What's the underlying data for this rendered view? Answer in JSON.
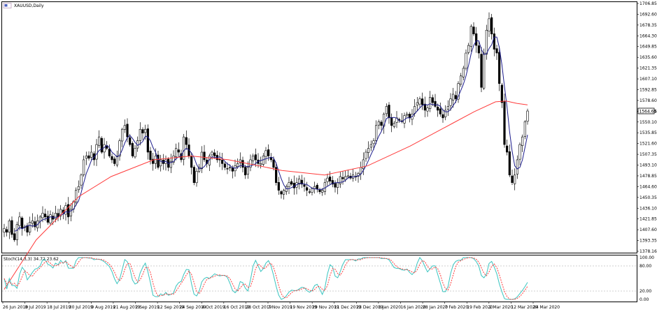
{
  "window": {
    "title": "XAUUSD,Daily"
  },
  "indicator": {
    "label": "Stoch(14,3,3) 34.72 23.62"
  },
  "colors": {
    "background": "#ffffff",
    "grid_border": "#000000",
    "ma_short": "#1c1c8c",
    "ma_long": "#ff3b3b",
    "stoch_main": "#39c5c0",
    "stoch_signal": "#ff3b3b",
    "level_line": "#c0c0c0",
    "price_label_bg": "#ffffff"
  },
  "chart_data": {
    "type": "candlestick",
    "symbol": "XAUUSD",
    "timeframe": "Daily",
    "price_axis": {
      "min": 1378.16,
      "max": 1706.85,
      "ticks": [
        "1706.85",
        "1692.60",
        "1678.35",
        "1664.30",
        "1649.85",
        "1635.60",
        "1621.35",
        "1607.10",
        "1592.85",
        "1578.60",
        "1564.35",
        "1550.10",
        "1535.85",
        "1521.60",
        "1507.35",
        "1493.10",
        "1478.85",
        "1464.60",
        "1450.35",
        "1436.10",
        "1421.85",
        "1407.60",
        "1393.35",
        "1378.16"
      ],
      "current_price": "1564.64"
    },
    "date_axis": {
      "ticks": [
        "26 Jun 2019",
        "8 Jul 2019",
        "18 Jul 2019",
        "30 Jul 2019",
        "9 Aug 2019",
        "21 Aug 2019",
        "2 Sep 2019",
        "12 Sep 2019",
        "24 Sep 2019",
        "4 Oct 2019",
        "16 Oct 2019",
        "28 Oct 2019",
        "7 Nov 2019",
        "19 Nov 2019",
        "29 Nov 2019",
        "11 Dec 2019",
        "23 Dec 2019",
        "6 Jan 2020",
        "16 Jan 2020",
        "28 Jan 2020",
        "7 Feb 2020",
        "19 Feb 2020",
        "2 Mar 2020",
        "12 Mar 2020",
        "24 Mar 2020"
      ]
    },
    "closes": [
      1410,
      1405,
      1420,
      1402,
      1395,
      1415,
      1425,
      1410,
      1412,
      1405,
      1418,
      1420,
      1412,
      1420,
      1425,
      1430,
      1425,
      1418,
      1428,
      1422,
      1430,
      1425,
      1435,
      1430,
      1440,
      1425,
      1435,
      1445,
      1460,
      1465,
      1480,
      1500,
      1505,
      1502,
      1510,
      1500,
      1520,
      1530,
      1510,
      1520,
      1515,
      1505,
      1500,
      1495,
      1505,
      1525,
      1540,
      1545,
      1530,
      1520,
      1505,
      1515,
      1525,
      1540,
      1535,
      1540,
      1510,
      1500,
      1495,
      1505,
      1490,
      1500,
      1495,
      1500,
      1490,
      1498,
      1505,
      1515,
      1510,
      1500,
      1530,
      1520,
      1505,
      1490,
      1470,
      1485,
      1490,
      1510,
      1500,
      1495,
      1505,
      1510,
      1505,
      1500,
      1500,
      1495,
      1490,
      1488,
      1490,
      1485,
      1492,
      1495,
      1500,
      1490,
      1480,
      1490,
      1500,
      1505,
      1500,
      1495,
      1495,
      1505,
      1512,
      1505,
      1500,
      1490,
      1470,
      1460,
      1455,
      1460,
      1465,
      1470,
      1468,
      1463,
      1470,
      1475,
      1468,
      1465,
      1460,
      1458,
      1462,
      1465,
      1462,
      1458,
      1460,
      1470,
      1476,
      1472,
      1468,
      1464,
      1470,
      1478,
      1475,
      1478,
      1479,
      1476,
      1480,
      1478,
      1482,
      1490,
      1500,
      1510,
      1515,
      1520,
      1525,
      1545,
      1550,
      1545,
      1560,
      1570,
      1555,
      1545,
      1548,
      1555,
      1552,
      1550,
      1558,
      1560,
      1555,
      1560,
      1570,
      1575,
      1580,
      1572,
      1565,
      1568,
      1582,
      1575,
      1570,
      1565,
      1560,
      1555,
      1565,
      1570,
      1580,
      1586,
      1580,
      1600,
      1610,
      1620,
      1640,
      1650,
      1675,
      1665,
      1650,
      1640,
      1595,
      1640,
      1670,
      1685,
      1665,
      1645,
      1640,
      1600,
      1575,
      1520,
      1510,
      1480,
      1470,
      1480,
      1500,
      1520,
      1530,
      1550,
      1564
    ],
    "ma_long": {
      "name": "",
      "points": [
        [
          0,
          1330
        ],
        [
          30,
          1395
        ],
        [
          70,
          1452
        ],
        [
          100,
          1478
        ],
        [
          140,
          1500
        ],
        [
          175,
          1505
        ],
        [
          210,
          1500
        ],
        [
          260,
          1486
        ],
        [
          300,
          1480
        ],
        [
          340,
          1492
        ],
        [
          380,
          1518
        ],
        [
          420,
          1548
        ],
        [
          440,
          1563
        ],
        [
          460,
          1576
        ],
        [
          470,
          1577
        ],
        [
          480,
          1574
        ],
        [
          490,
          1572
        ]
      ]
    },
    "stochastic": {
      "params": "14,3,3",
      "main": 34.72,
      "signal": 23.62,
      "levels": [
        20,
        80
      ],
      "axis_ticks": [
        "100.00",
        "80.00",
        "20.00",
        "0.00"
      ]
    }
  }
}
